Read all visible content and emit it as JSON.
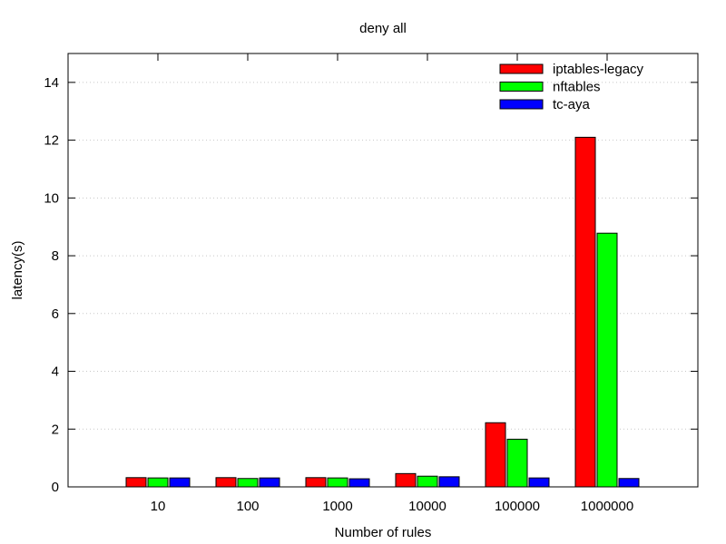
{
  "chart_data": {
    "type": "bar",
    "title": "deny all",
    "xlabel": "Number of rules",
    "ylabel": "latency(s)",
    "categories": [
      "10",
      "100",
      "1000",
      "10000",
      "100000",
      "1000000"
    ],
    "ylim": [
      0,
      15
    ],
    "yticks": [
      0,
      2,
      4,
      6,
      8,
      10,
      12,
      14
    ],
    "grid": true,
    "legend_position": "top-right",
    "series": [
      {
        "name": "iptables-legacy",
        "color": "#ff0000",
        "values": [
          0.32,
          0.32,
          0.32,
          0.46,
          2.22,
          12.1
        ]
      },
      {
        "name": "nftables",
        "color": "#00ff00",
        "values": [
          0.31,
          0.29,
          0.31,
          0.37,
          1.65,
          8.78
        ]
      },
      {
        "name": "tc-aya",
        "color": "#0000ff",
        "values": [
          0.31,
          0.31,
          0.28,
          0.35,
          0.31,
          0.29
        ]
      }
    ]
  }
}
